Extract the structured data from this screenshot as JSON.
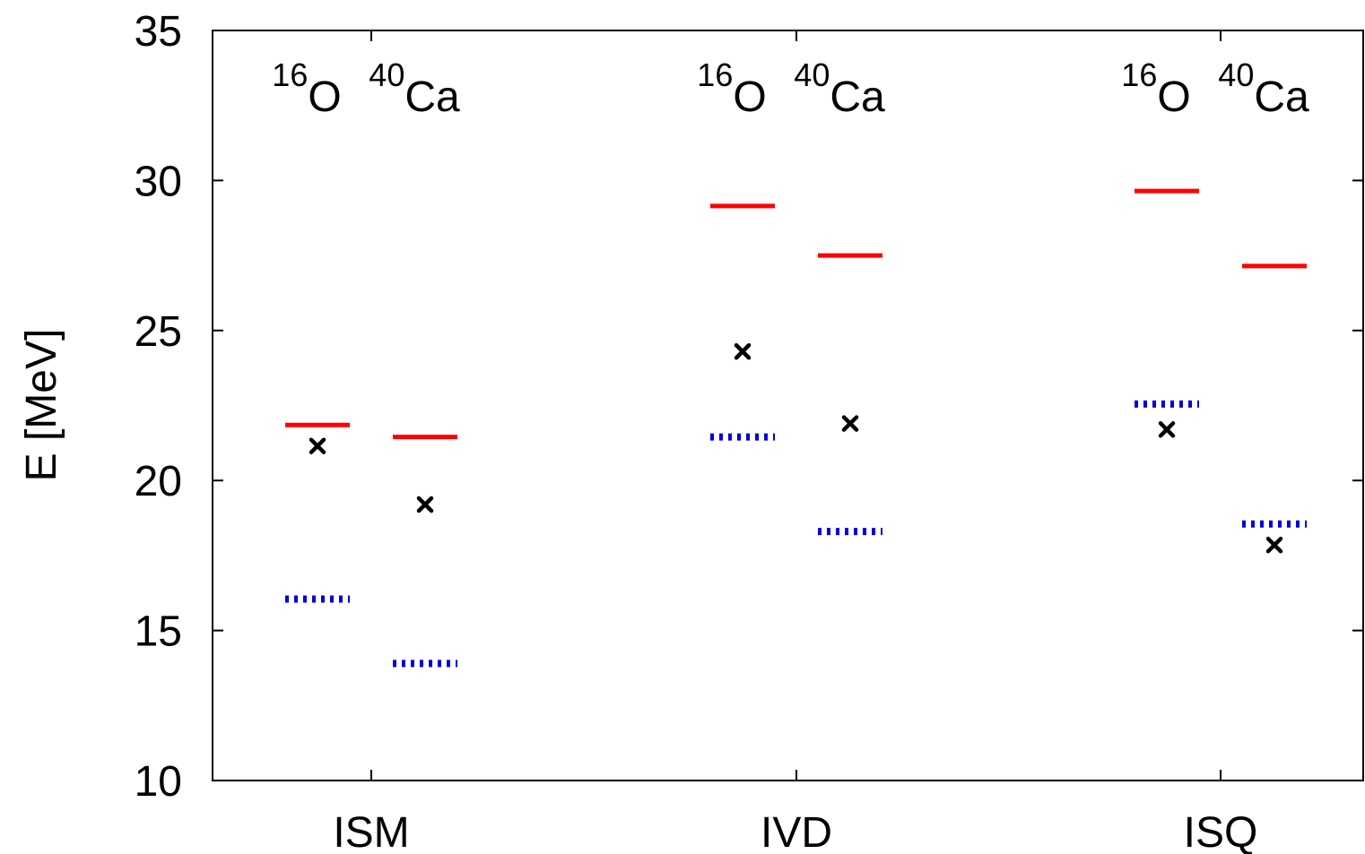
{
  "chart_data": {
    "type": "scatter",
    "title": "",
    "xlabel": "",
    "ylabel": "E [MeV]",
    "ylim": [
      10,
      35
    ],
    "yticks": [
      "10",
      "15",
      "20",
      "25",
      "30",
      "35"
    ],
    "categories": [
      "ISM",
      "IVD",
      "ISQ"
    ],
    "nuclei": [
      {
        "mass": "16",
        "symbol": "O"
      },
      {
        "mass": "40",
        "symbol": "Ca"
      }
    ],
    "grid": false,
    "colors": {
      "red": "#ff0000",
      "blue": "#0000dd",
      "black": "#000000"
    },
    "series": [
      {
        "style": "solid-red-line",
        "values": [
          [
            21.85,
            21.45
          ],
          [
            29.15,
            27.5
          ],
          [
            29.65,
            27.15
          ]
        ]
      },
      {
        "style": "blue-dotted-line",
        "values": [
          [
            16.05,
            13.9
          ],
          [
            21.45,
            18.3
          ],
          [
            22.55,
            18.55
          ]
        ]
      },
      {
        "style": "black-cross-marker",
        "values": [
          [
            21.15,
            19.2
          ],
          [
            24.3,
            21.9
          ],
          [
            21.7,
            17.85
          ]
        ]
      }
    ]
  }
}
